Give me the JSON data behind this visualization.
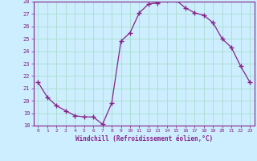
{
  "x": [
    0,
    1,
    2,
    3,
    4,
    5,
    6,
    7,
    8,
    9,
    10,
    11,
    12,
    13,
    14,
    15,
    16,
    17,
    18,
    19,
    20,
    21,
    22,
    23
  ],
  "y": [
    21.5,
    20.3,
    19.6,
    19.2,
    18.8,
    18.7,
    18.7,
    18.1,
    19.8,
    24.8,
    25.5,
    27.1,
    27.8,
    27.9,
    28.1,
    28.1,
    27.5,
    27.1,
    26.9,
    26.3,
    25.0,
    24.3,
    22.8,
    21.5
  ],
  "line_color": "#882288",
  "marker": "+",
  "marker_color": "#882288",
  "xlabel": "Windchill (Refroidissement éolien,°C)",
  "xlabel_color": "#882288",
  "bg_color": "#cceeff",
  "grid_color": "#aaddcc",
  "tick_color": "#882288",
  "ylim": [
    18,
    28
  ],
  "yticks": [
    18,
    19,
    20,
    21,
    22,
    23,
    24,
    25,
    26,
    27,
    28
  ],
  "xticks": [
    0,
    1,
    2,
    3,
    4,
    5,
    6,
    7,
    8,
    9,
    10,
    11,
    12,
    13,
    14,
    15,
    16,
    17,
    18,
    19,
    20,
    21,
    22,
    23
  ],
  "spine_color": "#882288"
}
